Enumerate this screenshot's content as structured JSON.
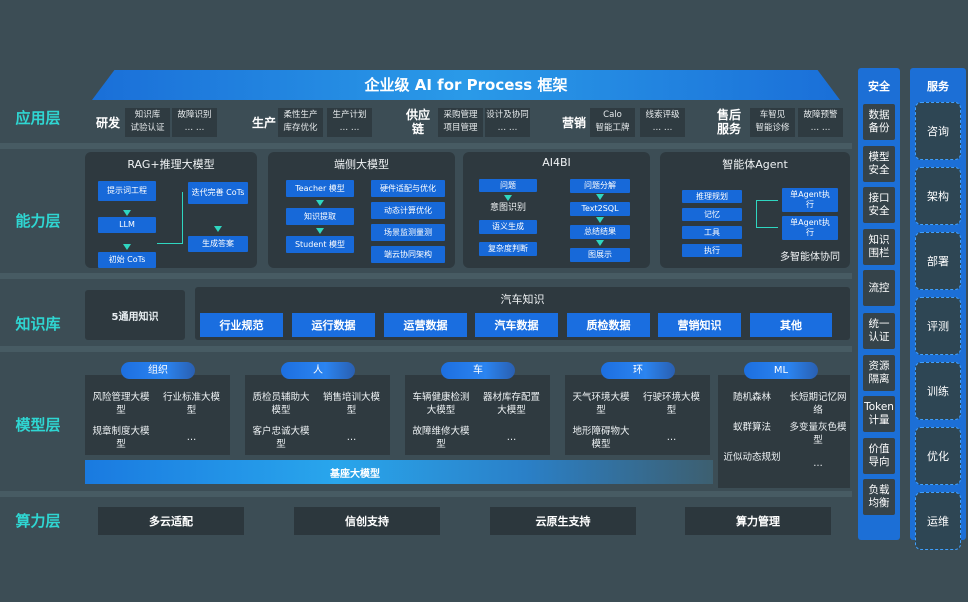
{
  "title": "企业级 AI for Process 框架",
  "layers": {
    "app": "应用层",
    "capability": "能力层",
    "knowledge": "知识库",
    "model": "模型层",
    "compute": "算力层"
  },
  "app_groups": [
    {
      "name": "研发",
      "items": [
        [
          "知识库",
          "试验认证"
        ],
        [
          "故障识别",
          "… …"
        ]
      ]
    },
    {
      "name": "生产",
      "items": [
        [
          "柔性生产",
          "库存优化"
        ],
        [
          "生产计划",
          "… …"
        ]
      ]
    },
    {
      "name": "供应链",
      "items": [
        [
          "采购管理",
          "项目管理"
        ],
        [
          "设计及协同",
          "… …"
        ]
      ]
    },
    {
      "name": "营销",
      "items": [
        [
          "Calo",
          "智能工牌"
        ],
        [
          "线索评级",
          "… …"
        ]
      ]
    },
    {
      "name": "售后服务",
      "items": [
        [
          "车智见",
          "智能诊修"
        ],
        [
          "故障预警",
          "… …"
        ]
      ]
    }
  ],
  "capability": {
    "rag": {
      "title": "RAG+推理大模型",
      "left": [
        "提示词工程",
        "LLM",
        "初始 CoTs"
      ],
      "right": [
        "迭代完善 CoTs",
        "生成答案"
      ]
    },
    "edge": {
      "title": "端侧大模型",
      "left": [
        "Teacher 模型",
        "知识提取",
        "Student 模型"
      ],
      "right": [
        "硬件适配与优化",
        "动态计算优化",
        "场景监测量测",
        "端云协同架构"
      ]
    },
    "ai4bi": {
      "title": "AI4BI",
      "left": [
        "问题",
        "意图识别",
        "语义生成",
        "复杂度判断"
      ],
      "right": [
        "问题分解",
        "Text2SQL",
        "总结结果",
        "图展示"
      ]
    },
    "agent": {
      "title": "智能体Agent",
      "left": [
        "推理规划",
        "记忆",
        "工具",
        "执行"
      ],
      "right": [
        "单Agent执行",
        "单Agent执行"
      ],
      "footer": "多智能体协同"
    }
  },
  "knowledge": {
    "general": "5通用知识",
    "auto_title": "汽车知识",
    "auto_items": [
      "行业规范",
      "运行数据",
      "运营数据",
      "汽车数据",
      "质检数据",
      "营销知识",
      "其他"
    ]
  },
  "model": {
    "groups": [
      {
        "name": "组织",
        "items": [
          "风险管理大模型",
          "行业标准大模型",
          "规章制度大模型",
          "…"
        ]
      },
      {
        "name": "人",
        "items": [
          "质检员辅助大模型",
          "销售培训大模型",
          "客户忠诚大模型",
          "…"
        ]
      },
      {
        "name": "车",
        "items": [
          "车辆健康检测大模型",
          "器材库存配置大模型",
          "故障维修大模型",
          "…"
        ]
      },
      {
        "name": "环",
        "items": [
          "天气环境大模型",
          "行驶环境大模型",
          "地形障碍物大模型",
          "…"
        ]
      },
      {
        "name": "ML",
        "items": [
          "随机森林",
          "长短期记忆网络",
          "蚁群算法",
          "多变量灰色模型",
          "近似动态规划",
          "…"
        ]
      }
    ],
    "base": "基座大模型"
  },
  "compute": [
    "多云适配",
    "信创支持",
    "云原生支持",
    "算力管理"
  ],
  "security": {
    "title": "安全",
    "items": [
      "数据备份",
      "模型安全",
      "接口安全",
      "知识围栏",
      "流控",
      "统一认证",
      "资源隔离",
      "Token计量",
      "价值导向",
      "负载均衡"
    ]
  },
  "service": {
    "title": "服务",
    "items": [
      "咨询",
      "架构",
      "部署",
      "评测",
      "训练",
      "优化",
      "运维"
    ]
  },
  "colors": {
    "accent": "#2fd6d2",
    "blue": "#1a6ee0",
    "background": "#3c4d55",
    "panel": "#2e393f"
  }
}
